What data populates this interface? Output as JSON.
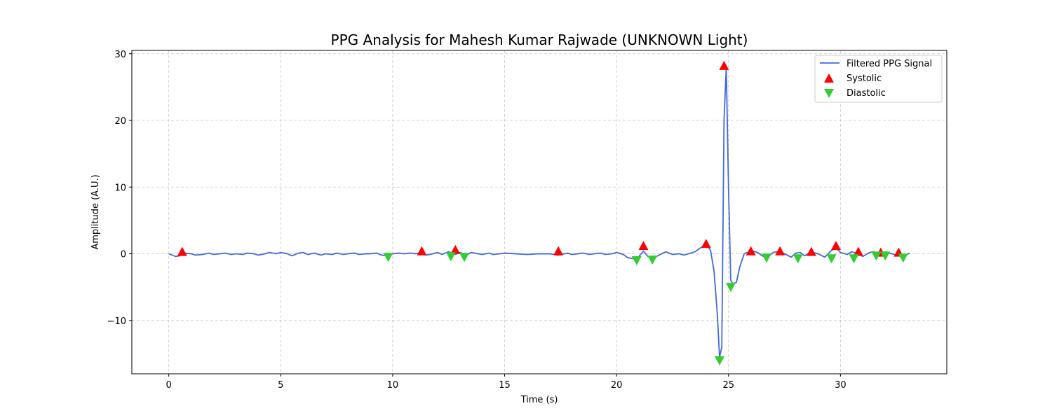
{
  "chart_data": {
    "type": "line",
    "title": "PPG Analysis for Mahesh Kumar Rajwade (UNKNOWN Light)",
    "xlabel": "Time (s)",
    "ylabel": "Amplitude (A.U.)",
    "xlim": [
      -1.65,
      34.75
    ],
    "ylim": [
      -18.0,
      30.5
    ],
    "xticks": [
      0,
      5,
      10,
      15,
      20,
      25,
      30
    ],
    "yticks": [
      -10,
      0,
      10,
      20,
      30
    ],
    "xtick_labels": [
      "0",
      "5",
      "10",
      "15",
      "20",
      "25",
      "30"
    ],
    "ytick_labels": [
      "−10",
      "0",
      "10",
      "20",
      "30"
    ],
    "grid": true,
    "legend_position": "top-right",
    "colors": {
      "signal": "#4169e1",
      "systolic": "#ff0000",
      "diastolic": "#32cd32"
    },
    "series": [
      {
        "name": "Filtered PPG Signal",
        "style": "line",
        "x": [
          0.0,
          0.3,
          0.5,
          0.7,
          1.0,
          1.2,
          1.5,
          1.8,
          2.0,
          2.3,
          2.5,
          2.8,
          3.0,
          3.3,
          3.5,
          3.8,
          4.0,
          4.3,
          4.5,
          4.8,
          5.0,
          5.3,
          5.5,
          5.8,
          6.0,
          6.2,
          6.5,
          6.8,
          7.0,
          7.3,
          7.5,
          7.8,
          8.0,
          8.3,
          8.5,
          8.8,
          9.0,
          9.3,
          9.5,
          9.8,
          10.0,
          10.3,
          10.5,
          10.8,
          11.0,
          11.3,
          11.5,
          11.8,
          12.0,
          12.2,
          12.5,
          12.8,
          13.0,
          13.3,
          13.5,
          13.8,
          14.0,
          14.3,
          14.5,
          14.8,
          15.0,
          15.5,
          16.0,
          16.5,
          17.0,
          17.4,
          17.8,
          18.0,
          18.3,
          18.5,
          18.8,
          19.0,
          19.3,
          19.5,
          19.8,
          20.0,
          20.3,
          20.5,
          20.9,
          21.2,
          21.4,
          21.6,
          21.9,
          22.2,
          22.5,
          22.8,
          23.0,
          23.3,
          23.5,
          23.8,
          24.0,
          24.2,
          24.35,
          24.5,
          24.6,
          24.7,
          24.8,
          24.9,
          25.0,
          25.1,
          25.2,
          25.35,
          25.5,
          25.7,
          25.9,
          26.0,
          26.3,
          26.5,
          26.7,
          27.0,
          27.3,
          27.5,
          27.8,
          28.0,
          28.2,
          28.4,
          28.7,
          29.0,
          29.3,
          29.6,
          29.8,
          30.0,
          30.3,
          30.5,
          30.8,
          31.0,
          31.3,
          31.5,
          31.8,
          32.0,
          32.3,
          32.6,
          32.9,
          33.1
        ],
        "y": [
          0.0,
          -0.4,
          -0.3,
          0.1,
          0.0,
          -0.2,
          -0.1,
          0.1,
          -0.1,
          0.0,
          0.1,
          -0.1,
          0.0,
          -0.1,
          0.1,
          0.0,
          -0.2,
          0.0,
          0.2,
          0.0,
          0.2,
          0.0,
          -0.3,
          0.1,
          0.2,
          -0.1,
          0.1,
          -0.2,
          0.0,
          -0.1,
          0.1,
          -0.1,
          0.0,
          0.1,
          -0.1,
          0.0,
          0.0,
          0.1,
          -0.2,
          -0.3,
          0.0,
          0.1,
          0.0,
          0.1,
          0.0,
          0.2,
          -0.2,
          0.0,
          0.2,
          -0.1,
          0.3,
          -0.1,
          0.2,
          -0.2,
          0.2,
          0.0,
          -0.1,
          0.1,
          -0.1,
          0.0,
          0.1,
          0.0,
          -0.1,
          0.0,
          0.0,
          -0.2,
          0.1,
          -0.1,
          0.0,
          0.1,
          -0.1,
          0.0,
          0.1,
          -0.1,
          0.0,
          0.2,
          -0.1,
          -0.6,
          -0.8,
          0.4,
          -0.4,
          -0.7,
          -0.2,
          0.3,
          -0.1,
          0.0,
          -0.2,
          0.1,
          0.3,
          1.0,
          1.5,
          0.5,
          -2.5,
          -9.0,
          -15.5,
          -14.0,
          20.0,
          28.0,
          10.0,
          -4.0,
          -4.5,
          -4.3,
          -2.0,
          0.0,
          0.3,
          0.5,
          0.2,
          -0.3,
          -0.6,
          0.2,
          0.4,
          0.0,
          -0.5,
          0.1,
          0.2,
          -0.3,
          0.3,
          0.0,
          -0.5,
          0.5,
          0.9,
          0.2,
          -0.1,
          0.3,
          0.0,
          -0.4,
          0.2,
          0.3,
          -0.2,
          0.3,
          0.0,
          -0.3,
          -0.2,
          0.1
        ]
      },
      {
        "name": "Systolic",
        "style": "triangle-up",
        "x": [
          0.6,
          11.3,
          12.8,
          17.4,
          21.2,
          24.0,
          24.8,
          26.0,
          27.3,
          28.7,
          29.8,
          30.8,
          31.8,
          32.6
        ],
        "y": [
          0.3,
          0.4,
          0.6,
          0.4,
          1.2,
          1.5,
          28.2,
          0.4,
          0.4,
          0.3,
          1.2,
          0.3,
          0.2,
          0.2
        ]
      },
      {
        "name": "Diastolic",
        "style": "triangle-down",
        "x": [
          9.8,
          12.6,
          13.2,
          20.9,
          21.6,
          24.6,
          25.1,
          26.7,
          28.1,
          29.6,
          30.6,
          31.6,
          32.0,
          32.8
        ],
        "y": [
          -0.5,
          -0.4,
          -0.5,
          -1.0,
          -0.9,
          -16.0,
          -5.0,
          -0.6,
          -0.7,
          -0.7,
          -0.7,
          -0.3,
          -0.3,
          -0.6
        ]
      }
    ]
  }
}
